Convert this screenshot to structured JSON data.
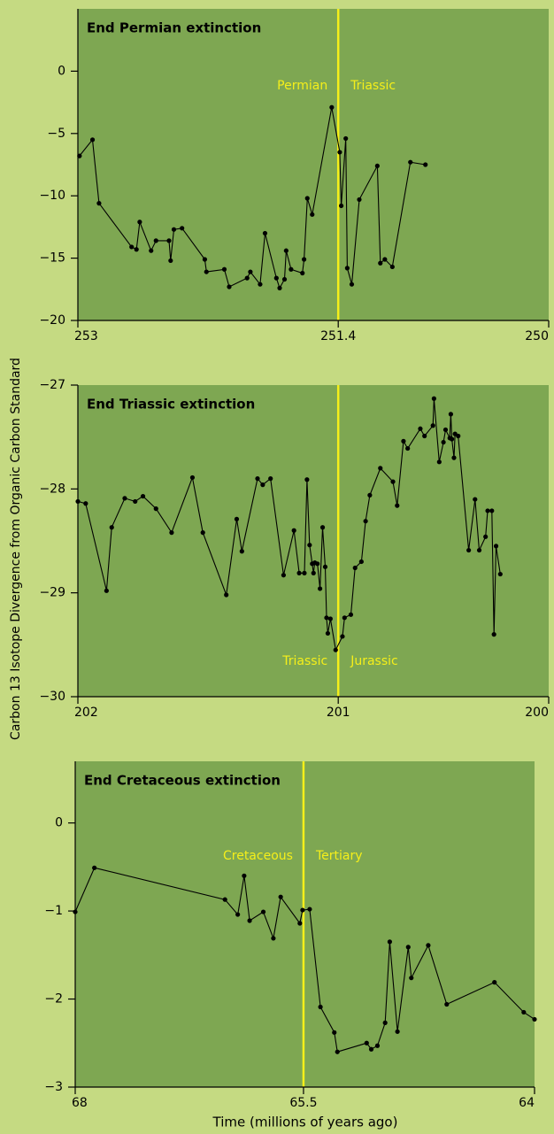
{
  "axis_labels": {
    "y": "Carbon 13 Isotope Divergence from Organic Carbon Standard",
    "x": "Time (millions of years ago)"
  },
  "chart_data": [
    {
      "type": "line",
      "title": "End Permian extinction",
      "color": "#000000",
      "plot_color": "#7ea752",
      "boundary_color": "#f5ef1a",
      "boundary": {
        "value": 251.4,
        "left_label": "Permian",
        "right_label": "Triassic"
      },
      "xlim": [
        253,
        250
      ],
      "xticks": [
        253,
        251.4,
        250
      ],
      "ylim": [
        -20,
        5
      ],
      "yticks": [
        0,
        {
          "value": -5,
          "label": "−5"
        },
        {
          "value": -10,
          "label": "−10"
        },
        {
          "value": -15,
          "label": "−15"
        },
        {
          "value": -20,
          "label": "−20"
        }
      ],
      "x": [
        252.99,
        252.91,
        252.87,
        252.67,
        252.64,
        252.62,
        252.55,
        252.52,
        252.44,
        252.43,
        252.41,
        252.36,
        252.22,
        252.21,
        252.1,
        252.07,
        251.96,
        251.94,
        251.88,
        251.85,
        251.78,
        251.76,
        251.73,
        251.72,
        251.69,
        251.62,
        251.61,
        251.59,
        251.56,
        251.44,
        251.39,
        251.38,
        251.35,
        251.34,
        251.31,
        251.26,
        251.14,
        251.12,
        251.09,
        251.04,
        250.92,
        250.82
      ],
      "values": [
        -6.8,
        -5.5,
        -10.6,
        -14.1,
        -14.3,
        -12.1,
        -14.4,
        -13.6,
        -13.6,
        -15.2,
        -12.7,
        -12.6,
        -15.1,
        -16.1,
        -15.9,
        -17.3,
        -16.6,
        -16.1,
        -17.1,
        -13.0,
        -16.6,
        -17.4,
        -16.7,
        -14.4,
        -15.9,
        -16.2,
        -15.1,
        -10.2,
        -11.5,
        -2.9,
        -6.5,
        -10.8,
        -5.4,
        -15.8,
        -17.1,
        -10.3,
        -7.6,
        -15.4,
        -15.1,
        -15.7,
        -7.3,
        -7.5
      ]
    },
    {
      "type": "line",
      "title": "End Triassic extinction",
      "color": "#000000",
      "plot_color": "#7ea752",
      "boundary_color": "#f5ef1a",
      "boundary": {
        "value": 201,
        "left_label": "Triassic",
        "right_label": "Jurassic"
      },
      "xlim": [
        202,
        200
      ],
      "xticks": [
        202,
        201,
        200
      ],
      "ylim": [
        -30,
        -27
      ],
      "yticks": [
        {
          "value": -27,
          "label": "−27"
        },
        {
          "value": -28,
          "label": "−28"
        },
        {
          "value": -29,
          "label": "−29"
        },
        {
          "value": -30,
          "label": "−30"
        }
      ],
      "x": [
        202.0,
        201.97,
        201.89,
        201.87,
        201.82,
        201.78,
        201.75,
        201.7,
        201.64,
        201.56,
        201.52,
        201.43,
        201.39,
        201.37,
        201.31,
        201.29,
        201.26,
        201.21,
        201.17,
        201.15,
        201.13,
        201.12,
        201.11,
        201.1,
        201.095,
        201.09,
        201.08,
        201.07,
        201.06,
        201.05,
        201.045,
        201.04,
        201.03,
        201.01,
        200.98,
        200.97,
        200.94,
        200.92,
        200.89,
        200.87,
        200.85,
        200.8,
        200.74,
        200.72,
        200.69,
        200.67,
        200.61,
        200.59,
        200.55,
        200.545,
        200.52,
        200.5,
        200.49,
        200.47,
        200.465,
        200.46,
        200.45,
        200.445,
        200.43,
        200.38,
        200.35,
        200.33,
        200.3,
        200.29,
        200.27,
        200.26,
        200.25,
        200.23
      ],
      "values": [
        -28.12,
        -28.14,
        -28.98,
        -28.37,
        -28.09,
        -28.12,
        -28.07,
        -28.19,
        -28.42,
        -27.89,
        -28.42,
        -29.02,
        -28.29,
        -28.6,
        -27.9,
        -27.96,
        -27.9,
        -28.83,
        -28.4,
        -28.81,
        -28.81,
        -27.91,
        -28.54,
        -28.72,
        -28.81,
        -28.71,
        -28.72,
        -28.96,
        -28.37,
        -28.75,
        -29.24,
        -29.39,
        -29.25,
        -29.55,
        -29.42,
        -29.24,
        -29.21,
        -28.76,
        -28.7,
        -28.31,
        -28.06,
        -27.8,
        -27.93,
        -28.16,
        -27.54,
        -27.61,
        -27.42,
        -27.49,
        -27.39,
        -27.13,
        -27.74,
        -27.55,
        -27.43,
        -27.51,
        -27.28,
        -27.52,
        -27.7,
        -27.47,
        -27.49,
        -28.59,
        -28.1,
        -28.59,
        -28.46,
        -28.21,
        -28.21,
        -29.4,
        -28.55,
        -28.82
      ]
    },
    {
      "type": "line",
      "title": "End Cretaceous extinction",
      "color": "#000000",
      "plot_color": "#7ea752",
      "boundary_color": "#f5ef1a",
      "boundary": {
        "value": 65.5,
        "left_label": "Cretaceous",
        "right_label": "Tertiary"
      },
      "xlim": [
        68,
        64
      ],
      "xticks": [
        68,
        65.5,
        64
      ],
      "ylim": [
        -3,
        0.7
      ],
      "yticks": [
        0,
        {
          "value": -1,
          "label": "−1"
        },
        {
          "value": -2,
          "label": "−2"
        },
        {
          "value": -3,
          "label": "−3"
        }
      ],
      "x": [
        68.0,
        67.79,
        66.36,
        66.22,
        66.15,
        66.09,
        65.94,
        65.83,
        65.75,
        65.54,
        65.51,
        65.46,
        65.39,
        65.3,
        65.28,
        65.09,
        65.06,
        65.02,
        64.97,
        64.94,
        64.89,
        64.82,
        64.8,
        64.69,
        64.57,
        64.26,
        64.07,
        64.0
      ],
      "values": [
        -1.01,
        -0.51,
        -0.87,
        -1.04,
        -0.6,
        -1.11,
        -1.01,
        -1.31,
        -0.84,
        -1.14,
        -0.99,
        -0.98,
        -2.09,
        -2.38,
        -2.6,
        -2.5,
        -2.57,
        -2.53,
        -2.27,
        -1.35,
        -2.37,
        -1.41,
        -1.76,
        -1.39,
        -2.06,
        -1.81,
        -2.15,
        -2.23
      ]
    }
  ]
}
